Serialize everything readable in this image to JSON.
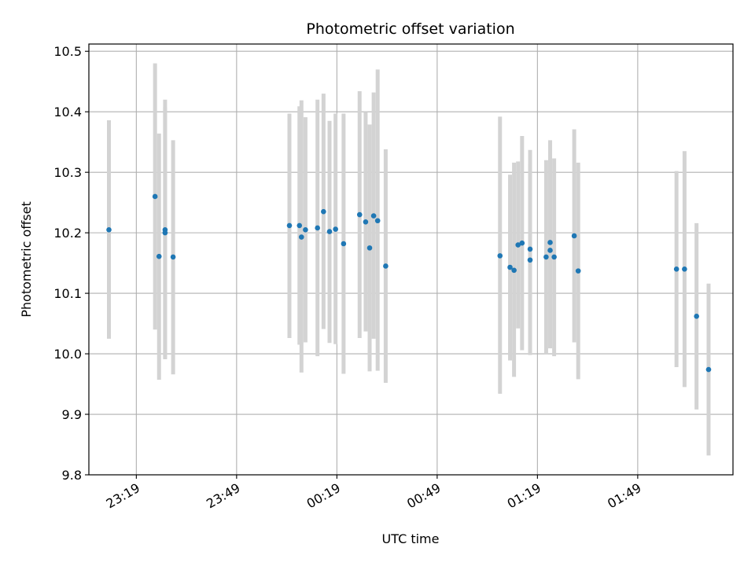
{
  "chart_data": {
    "type": "scatter",
    "title": "Photometric offset variation",
    "xlabel": "UTC time",
    "ylabel": "Photometric offset",
    "ylim": [
      9.8,
      10.512
    ],
    "xlim_minutes": [
      -14.2,
      178.5
    ],
    "grid": true,
    "x_ticks": [
      {
        "label": "23:19",
        "minutes": 0
      },
      {
        "label": "23:49",
        "minutes": 30
      },
      {
        "label": "00:19",
        "minutes": 60
      },
      {
        "label": "00:49",
        "minutes": 90
      },
      {
        "label": "01:19",
        "minutes": 120
      },
      {
        "label": "01:49",
        "minutes": 150
      }
    ],
    "y_ticks": [
      "9.8",
      "9.9",
      "10.0",
      "10.1",
      "10.2",
      "10.3",
      "10.4",
      "10.5"
    ],
    "colors": {
      "point": "#1f77b4",
      "errorbar": "#d3d3d3",
      "grid": "#b0b0b0"
    },
    "series": [
      {
        "points": [
          {
            "t": 23.18,
            "y": 10.205,
            "lo": 10.025,
            "hi": 10.386
          },
          {
            "t": 23.41,
            "y": 10.26,
            "lo": 10.04,
            "hi": 10.48
          },
          {
            "t": 23.43,
            "y": 10.161,
            "lo": 9.957,
            "hi": 10.364
          },
          {
            "t": 23.46,
            "y": 10.205,
            "lo": 9.991,
            "hi": 10.42
          },
          {
            "t": 23.46,
            "y": 10.2,
            "lo": 9.993,
            "hi": 10.407
          },
          {
            "t": 23.5,
            "y": 10.16,
            "lo": 9.966,
            "hi": 10.353
          },
          {
            "t": 24.08,
            "y": 10.212,
            "lo": 10.026,
            "hi": 10.397
          },
          {
            "t": 24.13,
            "y": 10.212,
            "lo": 10.015,
            "hi": 10.409
          },
          {
            "t": 24.14,
            "y": 10.193,
            "lo": 9.969,
            "hi": 10.419
          },
          {
            "t": 24.16,
            "y": 10.205,
            "lo": 10.019,
            "hi": 10.391
          },
          {
            "t": 24.22,
            "y": 10.208,
            "lo": 9.996,
            "hi": 10.42
          },
          {
            "t": 24.25,
            "y": 10.235,
            "lo": 10.041,
            "hi": 10.43
          },
          {
            "t": 24.28,
            "y": 10.202,
            "lo": 10.018,
            "hi": 10.385
          },
          {
            "t": 24.31,
            "y": 10.206,
            "lo": 10.016,
            "hi": 10.397
          },
          {
            "t": 24.35,
            "y": 10.182,
            "lo": 9.967,
            "hi": 10.397
          },
          {
            "t": 24.43,
            "y": 10.23,
            "lo": 10.026,
            "hi": 10.434
          },
          {
            "t": 24.46,
            "y": 10.218,
            "lo": 10.037,
            "hi": 10.4
          },
          {
            "t": 24.48,
            "y": 10.175,
            "lo": 9.971,
            "hi": 10.379
          },
          {
            "t": 24.5,
            "y": 10.228,
            "lo": 10.025,
            "hi": 10.432
          },
          {
            "t": 24.52,
            "y": 10.22,
            "lo": 9.972,
            "hi": 10.47
          },
          {
            "t": 24.56,
            "y": 10.145,
            "lo": 9.952,
            "hi": 10.338
          },
          {
            "t": 25.13,
            "y": 10.162,
            "lo": 9.934,
            "hi": 10.392
          },
          {
            "t": 25.18,
            "y": 10.143,
            "lo": 9.989,
            "hi": 10.296
          },
          {
            "t": 25.2,
            "y": 10.138,
            "lo": 9.962,
            "hi": 10.316
          },
          {
            "t": 25.22,
            "y": 10.18,
            "lo": 10.042,
            "hi": 10.318
          },
          {
            "t": 25.24,
            "y": 10.183,
            "lo": 10.006,
            "hi": 10.36
          },
          {
            "t": 25.28,
            "y": 10.173,
            "lo": 9.999,
            "hi": 10.337
          },
          {
            "t": 25.28,
            "y": 10.155,
            "lo": 9.998,
            "hi": 10.312
          },
          {
            "t": 25.36,
            "y": 10.16,
            "lo": 10.0,
            "hi": 10.32
          },
          {
            "t": 25.38,
            "y": 10.184,
            "lo": 10.015,
            "hi": 10.353
          },
          {
            "t": 25.38,
            "y": 10.171,
            "lo": 10.009,
            "hi": 10.333
          },
          {
            "t": 25.4,
            "y": 10.16,
            "lo": 9.996,
            "hi": 10.323
          },
          {
            "t": 25.5,
            "y": 10.195,
            "lo": 10.019,
            "hi": 10.371
          },
          {
            "t": 25.52,
            "y": 10.137,
            "lo": 9.958,
            "hi": 10.316
          },
          {
            "t": 26.01,
            "y": 10.14,
            "lo": 9.978,
            "hi": 10.302
          },
          {
            "t": 26.05,
            "y": 10.14,
            "lo": 9.945,
            "hi": 10.335
          },
          {
            "t": 26.11,
            "y": 10.062,
            "lo": 9.908,
            "hi": 10.216
          },
          {
            "t": 26.17,
            "y": 9.974,
            "lo": 9.832,
            "hi": 10.116
          }
        ]
      }
    ]
  }
}
